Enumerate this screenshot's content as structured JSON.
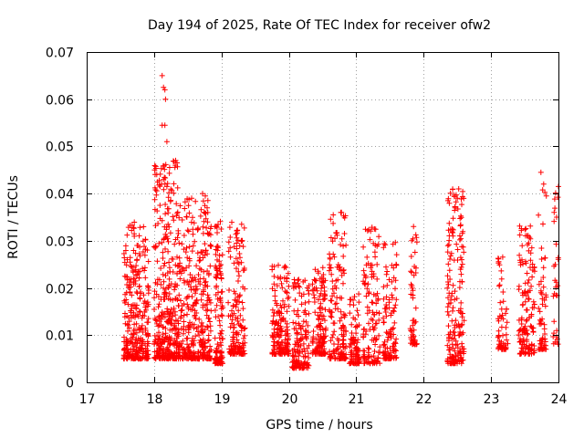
{
  "chart_data": {
    "type": "scatter",
    "title": "Day 194 of 2025, Rate Of TEC Index for receiver ofw2",
    "xlabel": "GPS time / hours",
    "ylabel": "ROTI / TECUs",
    "xlim": [
      17,
      24
    ],
    "ylim": [
      0,
      0.07
    ],
    "xticks": [
      "17",
      "18",
      "19",
      "20",
      "21",
      "22",
      "23",
      "24"
    ],
    "yticks": [
      "0",
      "0.01",
      "0.02",
      "0.03",
      "0.04",
      "0.05",
      "0.06",
      "0.07"
    ],
    "grid": true,
    "marker": "+",
    "color": "#ff0000",
    "series": [
      {
        "name": "ROTI",
        "clusters": [
          {
            "x": [
              17.55,
              17.72
            ],
            "y_low": 0.005,
            "y_high": 0.034,
            "count": 140
          },
          {
            "x": [
              17.72,
              17.92
            ],
            "y_low": 0.005,
            "y_high": 0.034,
            "count": 160
          },
          {
            "x": [
              18.0,
              18.35
            ],
            "y_low": 0.005,
            "y_high": 0.047,
            "count": 360
          },
          {
            "x": [
              18.35,
              18.85
            ],
            "y_low": 0.005,
            "y_high": 0.04,
            "count": 380
          },
          {
            "x": [
              18.9,
              19.02
            ],
            "y_low": 0.004,
            "y_high": 0.035,
            "count": 120
          },
          {
            "x": [
              19.1,
              19.35
            ],
            "y_low": 0.006,
            "y_high": 0.034,
            "count": 160
          },
          {
            "x": [
              19.75,
              20.0
            ],
            "y_low": 0.006,
            "y_high": 0.025,
            "count": 170
          },
          {
            "x": [
              20.05,
              20.3
            ],
            "y_low": 0.003,
            "y_high": 0.022,
            "count": 140
          },
          {
            "x": [
              20.35,
              20.55
            ],
            "y_low": 0.006,
            "y_high": 0.025,
            "count": 140
          },
          {
            "x": [
              20.6,
              20.85
            ],
            "y_low": 0.005,
            "y_high": 0.036,
            "count": 150
          },
          {
            "x": [
              20.9,
              21.05
            ],
            "y_low": 0.004,
            "y_high": 0.02,
            "count": 90
          },
          {
            "x": [
              21.1,
              21.35
            ],
            "y_low": 0.004,
            "y_high": 0.033,
            "count": 130
          },
          {
            "x": [
              21.4,
              21.6
            ],
            "y_low": 0.005,
            "y_high": 0.03,
            "count": 110
          },
          {
            "x": [
              21.8,
              21.9
            ],
            "y_low": 0.008,
            "y_high": 0.033,
            "count": 50
          },
          {
            "x": [
              22.35,
              22.6
            ],
            "y_low": 0.004,
            "y_high": 0.041,
            "count": 190
          },
          {
            "x": [
              23.1,
              23.25
            ],
            "y_low": 0.007,
            "y_high": 0.027,
            "count": 60
          },
          {
            "x": [
              23.4,
              23.65
            ],
            "y_low": 0.006,
            "y_high": 0.035,
            "count": 140
          },
          {
            "x": [
              23.7,
              23.82
            ],
            "y_low": 0.007,
            "y_high": 0.045,
            "count": 60
          },
          {
            "x": [
              23.92,
              24.0
            ],
            "y_low": 0.008,
            "y_high": 0.042,
            "count": 30
          }
        ],
        "notable_points": [
          {
            "x": 18.12,
            "y": 0.065
          },
          {
            "x": 18.14,
            "y": 0.0625
          },
          {
            "x": 18.16,
            "y": 0.062
          },
          {
            "x": 18.17,
            "y": 0.06
          },
          {
            "x": 18.12,
            "y": 0.0545
          },
          {
            "x": 18.16,
            "y": 0.0545
          },
          {
            "x": 18.19,
            "y": 0.051
          },
          {
            "x": 18.32,
            "y": 0.047
          },
          {
            "x": 18.34,
            "y": 0.0465
          },
          {
            "x": 18.11,
            "y": 0.042
          },
          {
            "x": 18.19,
            "y": 0.0415
          },
          {
            "x": 18.72,
            "y": 0.04
          },
          {
            "x": 18.76,
            "y": 0.0395
          },
          {
            "x": 20.78,
            "y": 0.036
          },
          {
            "x": 21.27,
            "y": 0.0325
          },
          {
            "x": 21.85,
            "y": 0.033
          },
          {
            "x": 22.52,
            "y": 0.041
          },
          {
            "x": 22.5,
            "y": 0.039
          },
          {
            "x": 23.74,
            "y": 0.0445
          },
          {
            "x": 23.78,
            "y": 0.042
          },
          {
            "x": 24.0,
            "y": 0.0415
          }
        ]
      }
    ]
  }
}
